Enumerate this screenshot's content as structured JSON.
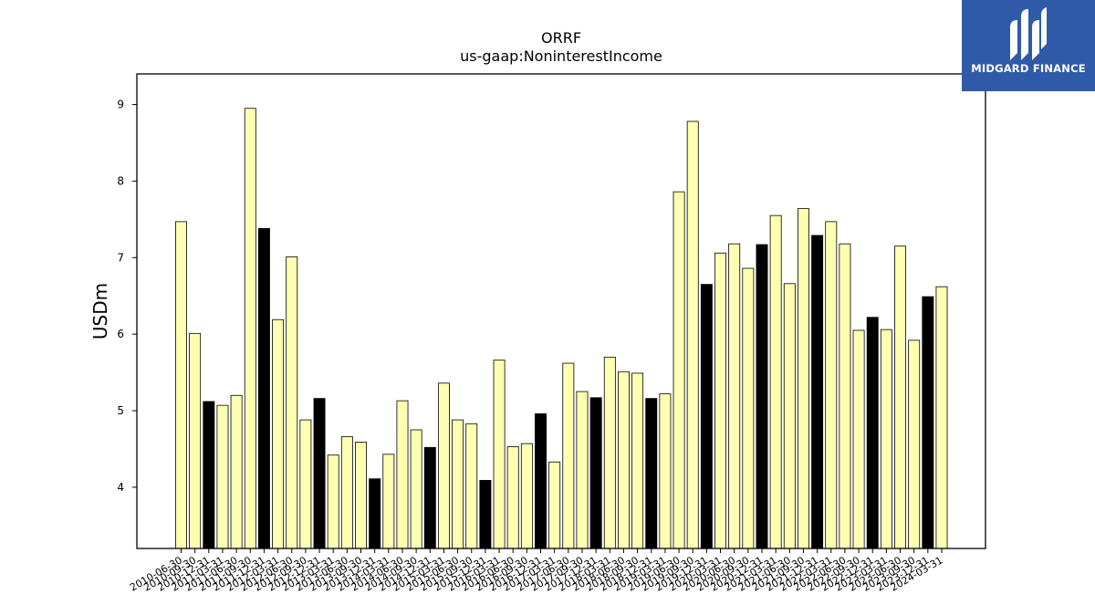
{
  "brand": {
    "name": "MIDGARD FINANCE",
    "logo_icon": "midgard-logo-icon",
    "color": "#2f5aa8"
  },
  "chart_data": {
    "type": "bar",
    "title": "ORRF",
    "subtitle": "us-gaap:NoninterestIncome",
    "xlabel": "",
    "ylabel": "USDm",
    "ylim": [
      3.2,
      9.4
    ],
    "yticks": [
      4,
      5,
      6,
      7,
      8,
      9
    ],
    "grid": false,
    "colors": {
      "default": "#ffffb2",
      "highlight": "#000000",
      "edge": "#000000"
    },
    "categories": [
      "2010-06-30",
      "2010-09-30",
      "2010-12-31",
      "2011-03-31",
      "2011-06-30",
      "2011-09-30",
      "2011-12-31",
      "2012-03-31",
      "2012-06-30",
      "2012-09-30",
      "2012-12-31",
      "2013-03-31",
      "2013-06-30",
      "2013-09-30",
      "2013-12-31",
      "2014-03-31",
      "2014-06-30",
      "2014-09-30",
      "2014-12-31",
      "2015-03-31",
      "2015-06-30",
      "2015-09-30",
      "2015-12-31",
      "2016-03-31",
      "2016-06-30",
      "2016-09-30",
      "2016-12-31",
      "2017-03-31",
      "2017-06-30",
      "2017-09-30",
      "2017-12-31",
      "2018-03-31",
      "2018-06-30",
      "2018-09-30",
      "2018-12-31",
      "2019-03-31",
      "2019-06-30",
      "2019-09-30",
      "2019-12-31",
      "2020-03-31",
      "2020-06-30",
      "2020-09-30",
      "2020-12-31",
      "2021-03-31",
      "2021-06-30",
      "2021-09-30",
      "2021-12-31",
      "2022-03-31",
      "2022-06-30",
      "2022-09-30",
      "2022-12-31",
      "2023-03-31",
      "2023-06-30",
      "2023-09-30",
      "2023-12-31",
      "2024-03-31"
    ],
    "values": [
      7.47,
      6.01,
      5.12,
      5.07,
      5.2,
      8.95,
      7.38,
      6.19,
      7.01,
      4.88,
      5.16,
      4.42,
      4.66,
      4.59,
      4.11,
      4.43,
      5.13,
      4.75,
      4.52,
      5.36,
      4.88,
      4.83,
      4.09,
      5.66,
      4.53,
      4.57,
      4.96,
      4.33,
      5.62,
      5.25,
      5.17,
      5.7,
      5.51,
      5.49,
      5.16,
      5.22,
      7.86,
      8.78,
      6.65,
      7.06,
      7.18,
      6.86,
      7.17,
      7.55,
      6.66,
      7.64,
      7.29,
      7.47,
      7.18,
      6.05,
      6.22,
      6.06,
      7.15,
      5.92,
      6.49,
      6.62
    ],
    "highlighted": [
      false,
      false,
      true,
      false,
      false,
      false,
      true,
      false,
      false,
      false,
      true,
      false,
      false,
      false,
      true,
      false,
      false,
      false,
      true,
      false,
      false,
      false,
      true,
      false,
      false,
      false,
      true,
      false,
      false,
      false,
      true,
      false,
      false,
      false,
      true,
      false,
      false,
      false,
      true,
      false,
      false,
      false,
      true,
      false,
      false,
      false,
      true,
      false,
      false,
      false,
      true,
      false,
      false,
      false,
      true,
      false
    ]
  }
}
